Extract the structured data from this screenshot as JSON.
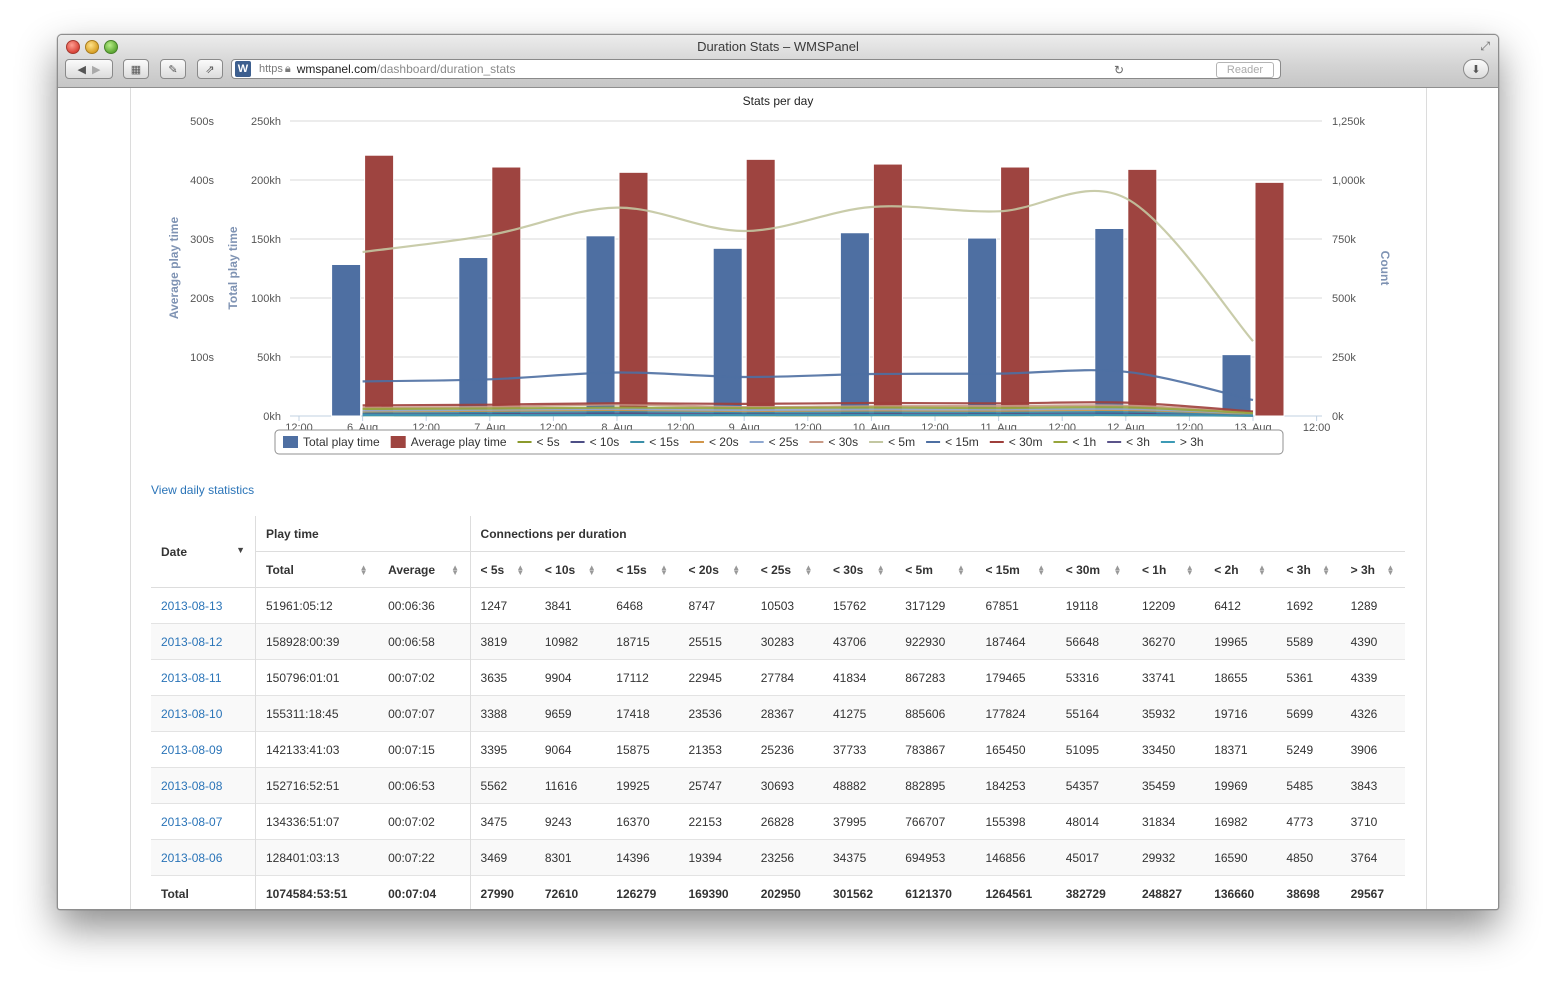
{
  "window": {
    "title": "Duration Stats – WMSPanel",
    "url_scheme": "https",
    "url_host": "wmspanel.com",
    "url_path": "/dashboard/duration_stats",
    "reader_label": "Reader"
  },
  "page": {
    "daily_link": "View daily statistics"
  },
  "chart_data": {
    "type": "bar",
    "title": "Stats per day",
    "y_left1_label": "Average play time",
    "y_left2_label": "Total play time",
    "y_right_label": "Count",
    "y_left1_ticks": [
      "500s",
      "400s",
      "300s",
      "200s",
      "100s"
    ],
    "y_left2_ticks": [
      "250kh",
      "200kh",
      "150kh",
      "100kh",
      "50kh",
      "0kh"
    ],
    "y_right_ticks": [
      "1,250k",
      "1,000k",
      "750k",
      "500k",
      "250k",
      "0k"
    ],
    "x_ticks": [
      "12:00",
      "6. Aug",
      "12:00",
      "7. Aug",
      "12:00",
      "8. Aug",
      "12:00",
      "9. Aug",
      "12:00",
      "10. Aug",
      "12:00",
      "11. Aug",
      "12:00",
      "12. Aug",
      "12:00",
      "13. Aug",
      "12:00"
    ],
    "categories": [
      "2013-08-06",
      "2013-08-07",
      "2013-08-08",
      "2013-08-09",
      "2013-08-10",
      "2013-08-11",
      "2013-08-12",
      "2013-08-13"
    ],
    "total_play_time_kh": [
      128.4,
      134.3,
      152.7,
      142.1,
      155.3,
      150.8,
      158.9,
      52.0
    ],
    "average_play_time_s": [
      442,
      422,
      413,
      435,
      427,
      422,
      418,
      396
    ],
    "count_series": [
      {
        "name": "< 5s",
        "color": "#8b9a2c",
        "values": [
          3469,
          3475,
          5562,
          3395,
          3388,
          3635,
          3819,
          1247
        ]
      },
      {
        "name": "< 10s",
        "color": "#4d4f86",
        "values": [
          8301,
          9243,
          11616,
          9064,
          9659,
          9904,
          10982,
          3841
        ]
      },
      {
        "name": "< 15s",
        "color": "#3b8fa8",
        "values": [
          14396,
          16370,
          19925,
          15875,
          17418,
          17112,
          18715,
          6468
        ]
      },
      {
        "name": "< 20s",
        "color": "#d1964a",
        "values": [
          19394,
          22153,
          25747,
          21353,
          23536,
          22945,
          25515,
          8747
        ]
      },
      {
        "name": "< 25s",
        "color": "#8fa8d0",
        "values": [
          23256,
          26828,
          30693,
          25236,
          28367,
          27784,
          30283,
          10503
        ]
      },
      {
        "name": "< 30s",
        "color": "#c99a86",
        "values": [
          34375,
          37995,
          48882,
          37733,
          41275,
          41834,
          43706,
          15762
        ]
      },
      {
        "name": "< 5m",
        "color": "#c3c7a1",
        "values": [
          694953,
          766707,
          882895,
          783867,
          885606,
          867283,
          922930,
          317129
        ]
      },
      {
        "name": "< 15m",
        "color": "#4e6fa2",
        "values": [
          146856,
          155398,
          184253,
          165450,
          177824,
          179465,
          187464,
          67851
        ]
      },
      {
        "name": "< 30m",
        "color": "#9e3f3b",
        "values": [
          45017,
          48014,
          54357,
          51095,
          55164,
          53316,
          56648,
          19118
        ]
      },
      {
        "name": "< 1h",
        "color": "#97a53c",
        "values": [
          29932,
          31834,
          35459,
          33450,
          35932,
          33741,
          36270,
          12209
        ]
      },
      {
        "name": "< 3h",
        "color": "#5b548a",
        "values": [
          4850,
          4773,
          5485,
          5249,
          5699,
          5361,
          5589,
          1692
        ]
      },
      {
        "name": "> 3h",
        "color": "#3c9ab5",
        "values": [
          3764,
          3710,
          3843,
          3906,
          4326,
          4339,
          4390,
          1289
        ]
      }
    ],
    "legend": [
      {
        "label": "Total play time",
        "kind": "bar",
        "color": "#4e6fa2"
      },
      {
        "label": "Average play time",
        "kind": "bar",
        "color": "#9e4440"
      },
      {
        "label": "< 5s",
        "kind": "line",
        "color": "#8b9a2c"
      },
      {
        "label": "< 10s",
        "kind": "line",
        "color": "#4d4f86"
      },
      {
        "label": "< 15s",
        "kind": "line",
        "color": "#3b8fa8"
      },
      {
        "label": "< 20s",
        "kind": "line",
        "color": "#d1964a"
      },
      {
        "label": "< 25s",
        "kind": "line",
        "color": "#8fa8d0"
      },
      {
        "label": "< 30s",
        "kind": "line",
        "color": "#c99a86"
      },
      {
        "label": "< 5m",
        "kind": "line",
        "color": "#c3c7a1"
      },
      {
        "label": "< 15m",
        "kind": "line",
        "color": "#4e6fa2"
      },
      {
        "label": "< 30m",
        "kind": "line",
        "color": "#9e3f3b"
      },
      {
        "label": "< 1h",
        "kind": "line",
        "color": "#97a53c"
      },
      {
        "label": "< 3h",
        "kind": "line",
        "color": "#5b548a"
      },
      {
        "label": "> 3h",
        "kind": "line",
        "color": "#3c9ab5"
      }
    ],
    "ylim_total_kh": [
      0,
      250
    ],
    "ylim_count_k": [
      0,
      1250
    ],
    "ylim_average_s": [
      0,
      500
    ],
    "grid": true,
    "legend_position": "bottom"
  },
  "table": {
    "header_date": "Date",
    "header_playtime": "Play time",
    "header_connections": "Connections per duration",
    "sub_headers": [
      "Total",
      "Average",
      "< 5s",
      "< 10s",
      "< 15s",
      "< 20s",
      "< 25s",
      "< 30s",
      "< 5m",
      "< 15m",
      "< 30m",
      "< 1h",
      "< 2h",
      "< 3h",
      "> 3h"
    ],
    "rows": [
      [
        "2013-08-13",
        "51961:05:12",
        "00:06:36",
        "1247",
        "3841",
        "6468",
        "8747",
        "10503",
        "15762",
        "317129",
        "67851",
        "19118",
        "12209",
        "6412",
        "1692",
        "1289"
      ],
      [
        "2013-08-12",
        "158928:00:39",
        "00:06:58",
        "3819",
        "10982",
        "18715",
        "25515",
        "30283",
        "43706",
        "922930",
        "187464",
        "56648",
        "36270",
        "19965",
        "5589",
        "4390"
      ],
      [
        "2013-08-11",
        "150796:01:01",
        "00:07:02",
        "3635",
        "9904",
        "17112",
        "22945",
        "27784",
        "41834",
        "867283",
        "179465",
        "53316",
        "33741",
        "18655",
        "5361",
        "4339"
      ],
      [
        "2013-08-10",
        "155311:18:45",
        "00:07:07",
        "3388",
        "9659",
        "17418",
        "23536",
        "28367",
        "41275",
        "885606",
        "177824",
        "55164",
        "35932",
        "19716",
        "5699",
        "4326"
      ],
      [
        "2013-08-09",
        "142133:41:03",
        "00:07:15",
        "3395",
        "9064",
        "15875",
        "21353",
        "25236",
        "37733",
        "783867",
        "165450",
        "51095",
        "33450",
        "18371",
        "5249",
        "3906"
      ],
      [
        "2013-08-08",
        "152716:52:51",
        "00:06:53",
        "5562",
        "11616",
        "19925",
        "25747",
        "30693",
        "48882",
        "882895",
        "184253",
        "54357",
        "35459",
        "19969",
        "5485",
        "3843"
      ],
      [
        "2013-08-07",
        "134336:51:07",
        "00:07:02",
        "3475",
        "9243",
        "16370",
        "22153",
        "26828",
        "37995",
        "766707",
        "155398",
        "48014",
        "31834",
        "16982",
        "4773",
        "3710"
      ],
      [
        "2013-08-06",
        "128401:03:13",
        "00:07:22",
        "3469",
        "8301",
        "14396",
        "19394",
        "23256",
        "34375",
        "694953",
        "146856",
        "45017",
        "29932",
        "16590",
        "4850",
        "3764"
      ]
    ],
    "total": [
      "Total",
      "1074584:53:51",
      "00:07:04",
      "27990",
      "72610",
      "126279",
      "169390",
      "202950",
      "301562",
      "6121370",
      "1264561",
      "382729",
      "248827",
      "136660",
      "38698",
      "29567"
    ]
  }
}
